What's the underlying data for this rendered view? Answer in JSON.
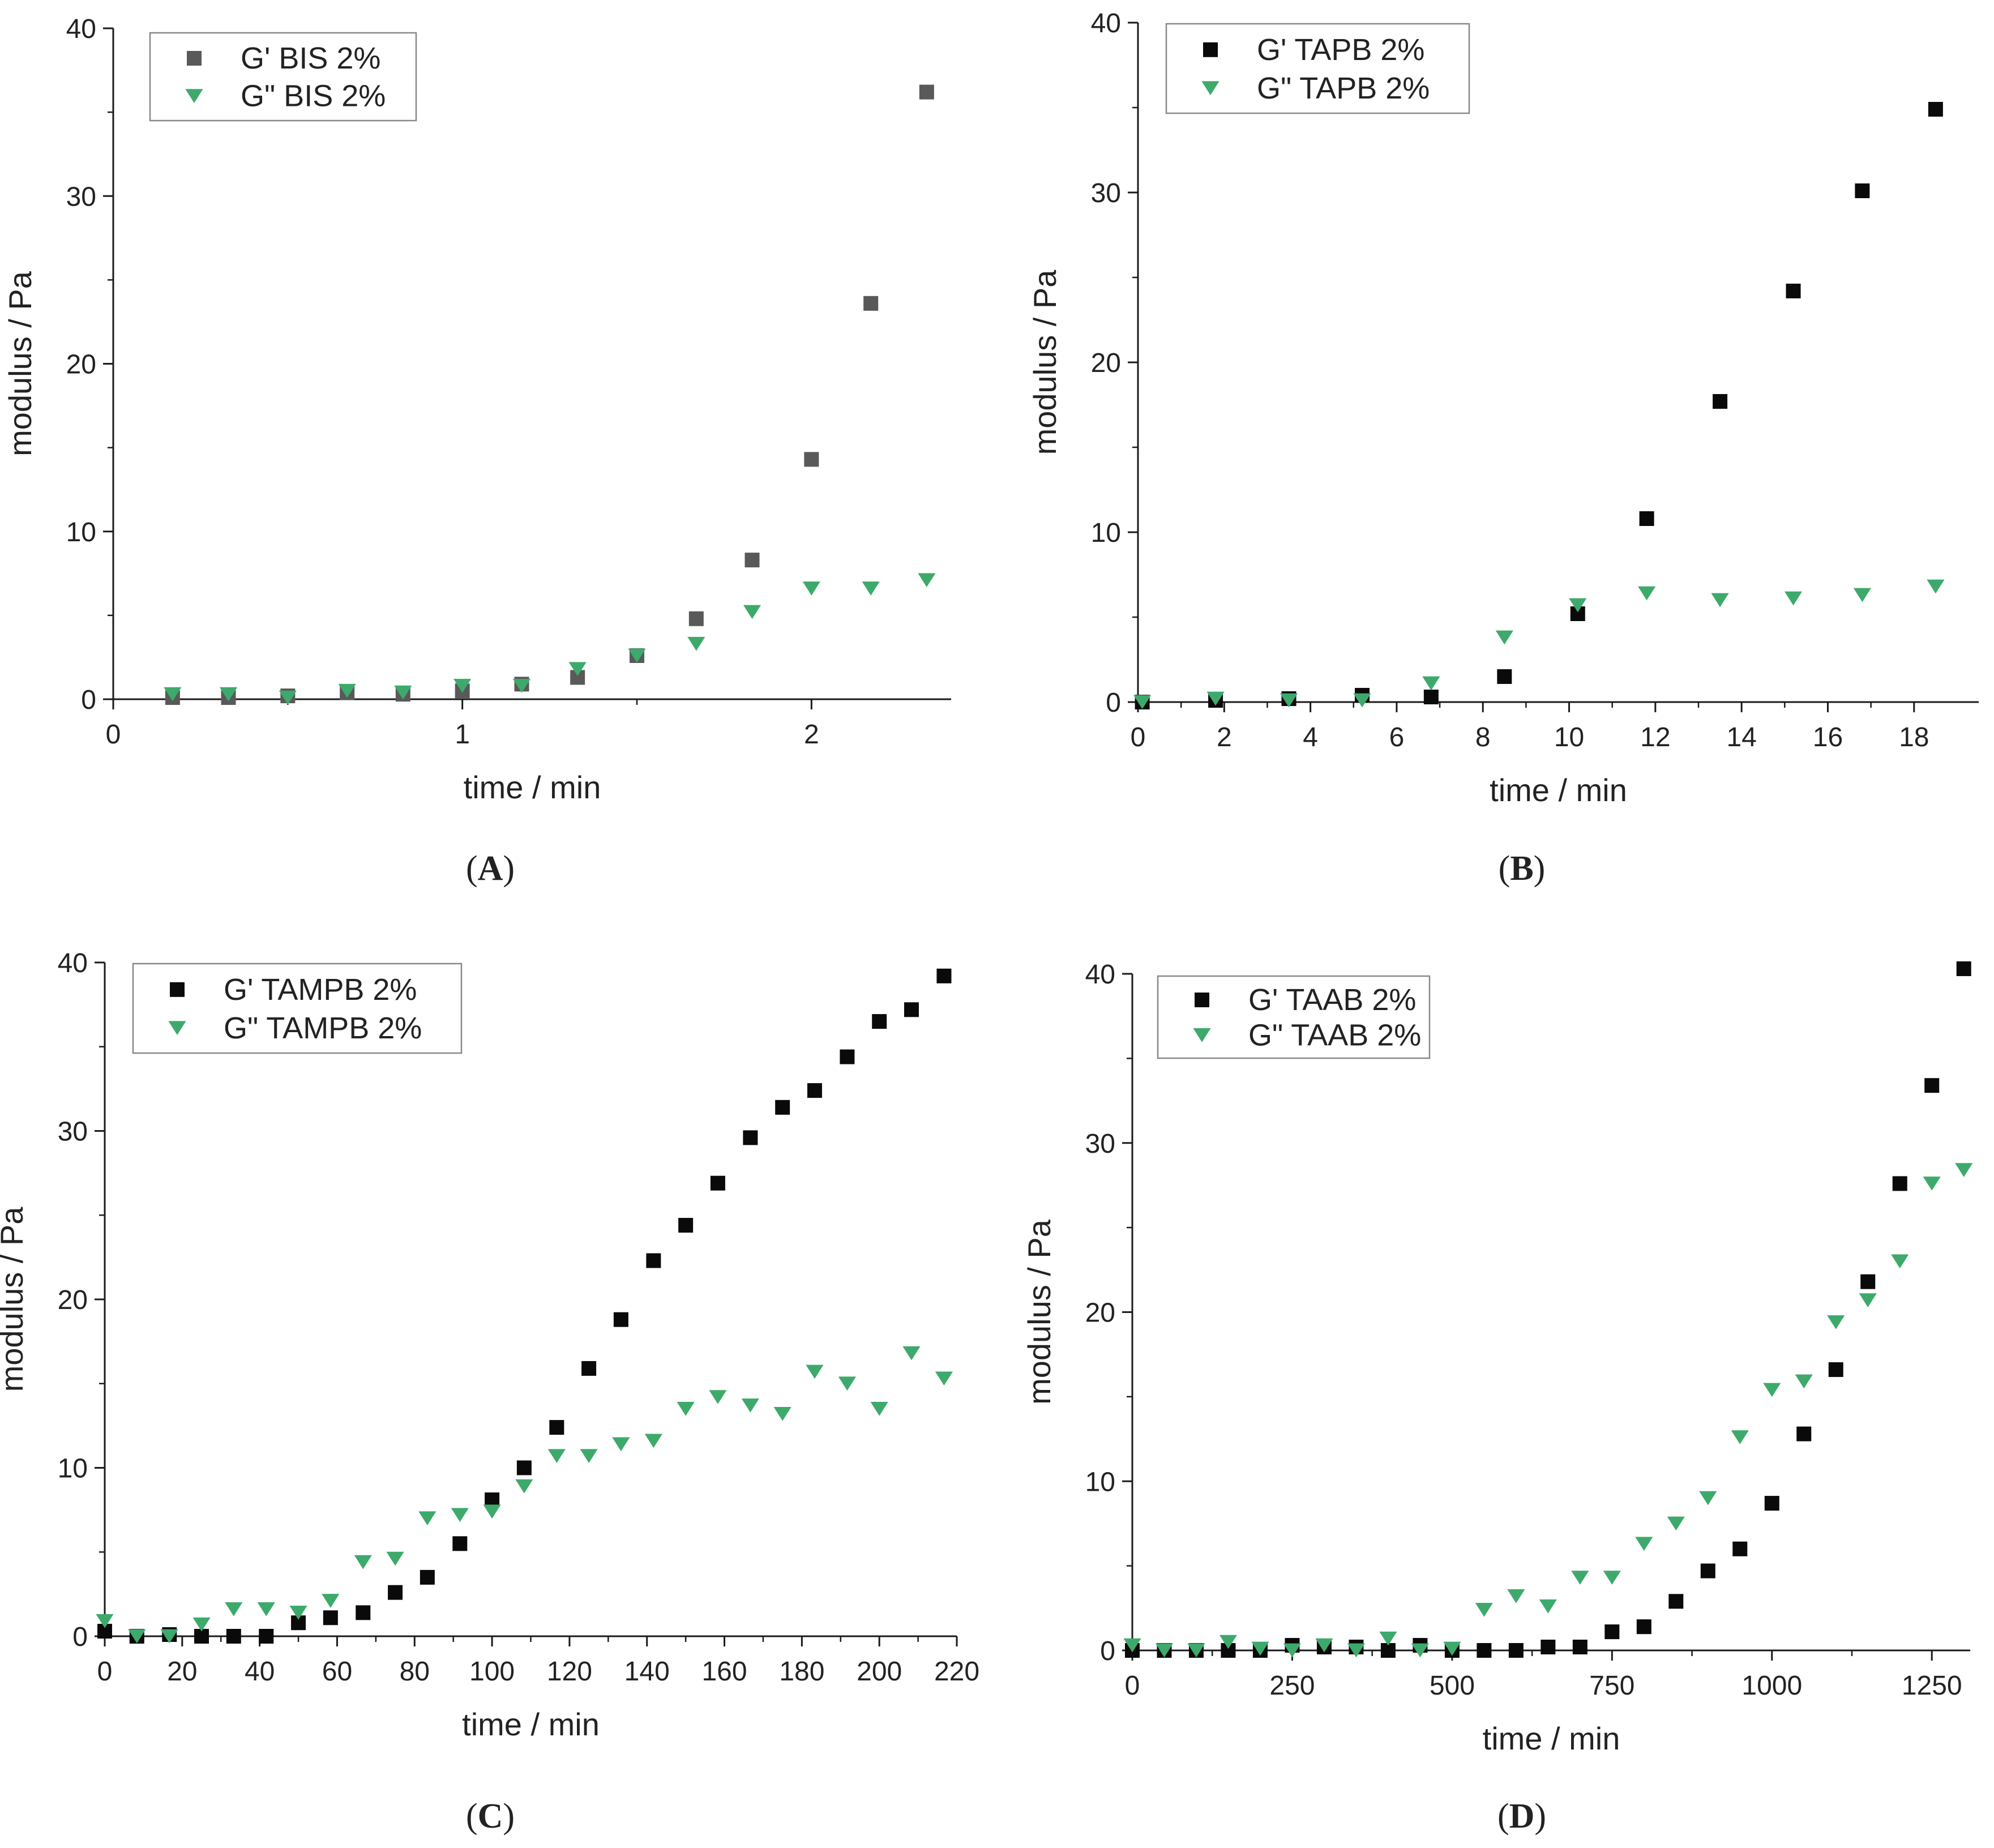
{
  "colors": {
    "gprime_bis": "#595959",
    "gprime": "#0a0a0a",
    "gdouble": "#3daa6c",
    "axis": "#1a1a1a",
    "legend_border": "#888888"
  },
  "chart_data": [
    {
      "id": "A",
      "panel_label": "A",
      "type": "scatter",
      "xlabel": "time / min",
      "ylabel": "modulus / Pa",
      "xlim": [
        0,
        2.4
      ],
      "ylim": [
        0,
        40
      ],
      "xticks": [
        0,
        1,
        2
      ],
      "yticks": [
        0,
        10,
        20,
        30,
        40
      ],
      "series": [
        {
          "name": "G' BIS 2%",
          "marker": "square",
          "color": "#595959",
          "x": [
            0.17,
            0.33,
            0.5,
            0.67,
            0.83,
            1.0,
            1.17,
            1.33,
            1.5,
            1.67,
            1.83,
            2.0,
            2.17,
            2.33
          ],
          "y": [
            0.1,
            0.1,
            0.2,
            0.4,
            0.3,
            0.5,
            0.9,
            1.3,
            2.6,
            4.8,
            8.3,
            14.3,
            23.6,
            36.2
          ]
        },
        {
          "name": "G\" BIS 2%",
          "marker": "triangle-down",
          "color": "#3daa6c",
          "x": [
            0.17,
            0.33,
            0.5,
            0.67,
            0.83,
            1.0,
            1.17,
            1.33,
            1.5,
            1.67,
            1.83,
            2.0,
            2.17,
            2.33
          ],
          "y": [
            0.3,
            0.3,
            0.1,
            0.5,
            0.4,
            0.8,
            0.8,
            1.8,
            2.6,
            3.3,
            5.2,
            6.6,
            6.6,
            7.1
          ]
        }
      ]
    },
    {
      "id": "B",
      "panel_label": "B",
      "type": "scatter",
      "xlabel": "time / min",
      "ylabel": "modulus / Pa",
      "xlim": [
        0,
        19.5
      ],
      "ylim": [
        0,
        40
      ],
      "xticks": [
        0,
        2,
        4,
        6,
        8,
        10,
        12,
        14,
        16,
        18
      ],
      "yticks": [
        0,
        10,
        20,
        30,
        40
      ],
      "series": [
        {
          "name": "G' TAPB 2%",
          "marker": "square",
          "color": "#0a0a0a",
          "x": [
            0.1,
            1.8,
            3.5,
            5.2,
            6.8,
            8.5,
            10.2,
            11.8,
            13.5,
            15.2,
            16.8,
            18.5
          ],
          "y": [
            0.0,
            0.1,
            0.2,
            0.4,
            0.3,
            1.5,
            5.2,
            10.8,
            17.7,
            24.2,
            30.1,
            34.9
          ]
        },
        {
          "name": "G\" TAPB 2%",
          "marker": "triangle-down",
          "color": "#3daa6c",
          "x": [
            0.1,
            1.8,
            3.5,
            5.2,
            6.8,
            8.5,
            10.2,
            11.8,
            13.5,
            15.2,
            16.8,
            18.5
          ],
          "y": [
            0.0,
            0.2,
            0.1,
            0.1,
            1.1,
            3.8,
            5.7,
            6.4,
            6.0,
            6.1,
            6.3,
            6.8
          ]
        }
      ]
    },
    {
      "id": "C",
      "panel_label": "C",
      "type": "scatter",
      "xlabel": "time / min",
      "ylabel": "modulus / Pa",
      "xlim": [
        0,
        220
      ],
      "ylim": [
        0,
        40
      ],
      "xticks": [
        0,
        20,
        40,
        60,
        80,
        100,
        120,
        140,
        160,
        180,
        200,
        220
      ],
      "yticks": [
        0,
        10,
        20,
        30,
        40
      ],
      "series": [
        {
          "name": "G' TAMPB 2%",
          "marker": "square",
          "color": "#0a0a0a",
          "x": [
            0,
            8.3,
            16.7,
            25,
            33.3,
            41.7,
            50,
            58.3,
            66.7,
            75,
            83.3,
            91.7,
            100,
            108.3,
            116.7,
            125,
            133.3,
            141.7,
            150,
            158.3,
            166.7,
            175,
            183.3,
            191.7,
            200,
            208.3,
            216.7
          ],
          "y": [
            0.3,
            0.0,
            0.1,
            0.0,
            0.0,
            0.0,
            0.8,
            1.1,
            1.4,
            2.6,
            3.5,
            5.5,
            8.1,
            10.0,
            12.4,
            15.9,
            18.8,
            22.3,
            24.4,
            26.9,
            29.6,
            31.4,
            32.4,
            34.4,
            36.5,
            37.2,
            39.2
          ]
        },
        {
          "name": "G\" TAMPB 2%",
          "marker": "triangle-down",
          "color": "#3daa6c",
          "x": [
            0,
            8.3,
            16.7,
            25,
            33.3,
            41.7,
            50,
            58.3,
            66.7,
            75,
            83.3,
            91.7,
            100,
            108.3,
            116.7,
            125,
            133.3,
            141.7,
            150,
            158.3,
            166.7,
            175,
            183.3,
            191.7,
            200,
            208.3,
            216.7
          ],
          "y": [
            0.9,
            0.0,
            0.0,
            0.7,
            1.6,
            1.6,
            1.4,
            2.1,
            4.4,
            4.6,
            7.0,
            7.2,
            7.4,
            8.9,
            10.7,
            10.7,
            11.4,
            11.6,
            13.5,
            14.2,
            13.7,
            13.2,
            15.7,
            15.0,
            13.5,
            16.8,
            15.3
          ]
        }
      ]
    },
    {
      "id": "D",
      "panel_label": "D",
      "type": "scatter",
      "xlabel": "time / min",
      "ylabel": "modulus / Pa",
      "xlim": [
        0,
        1310
      ],
      "ylim": [
        0,
        40
      ],
      "xticks": [
        0,
        250,
        500,
        750,
        1000,
        1250
      ],
      "yticks": [
        0,
        10,
        20,
        30,
        40
      ],
      "series": [
        {
          "name": "G' TAAB 2%",
          "marker": "square",
          "color": "#0a0a0a",
          "x": [
            0,
            50,
            100,
            150,
            200,
            250,
            300,
            350,
            400,
            450,
            500,
            550,
            600,
            650,
            700,
            750,
            800,
            850,
            900,
            950,
            1000,
            1050,
            1100,
            1150,
            1200,
            1250,
            1300
          ],
          "y": [
            0.0,
            0.0,
            0.0,
            0.0,
            0.0,
            0.3,
            0.2,
            0.2,
            0.0,
            0.3,
            0.0,
            0.0,
            0.0,
            0.2,
            0.2,
            1.1,
            1.4,
            2.9,
            4.7,
            6.0,
            8.7,
            12.8,
            16.6,
            21.8,
            27.6,
            33.4,
            40.3
          ]
        },
        {
          "name": "G\" TAAB 2%",
          "marker": "triangle-down",
          "color": "#3daa6c",
          "x": [
            0,
            50,
            100,
            150,
            200,
            250,
            300,
            350,
            400,
            450,
            500,
            550,
            600,
            650,
            700,
            750,
            800,
            850,
            900,
            950,
            1000,
            1050,
            1100,
            1150,
            1200,
            1250,
            1300
          ],
          "y": [
            0.3,
            0.0,
            0.0,
            0.5,
            0.1,
            0.0,
            0.3,
            0.0,
            0.7,
            0.0,
            0.1,
            2.4,
            3.2,
            2.6,
            4.3,
            4.3,
            6.3,
            7.5,
            9.0,
            12.6,
            15.4,
            15.9,
            19.4,
            20.7,
            23.0,
            27.6,
            28.4
          ]
        }
      ]
    }
  ]
}
